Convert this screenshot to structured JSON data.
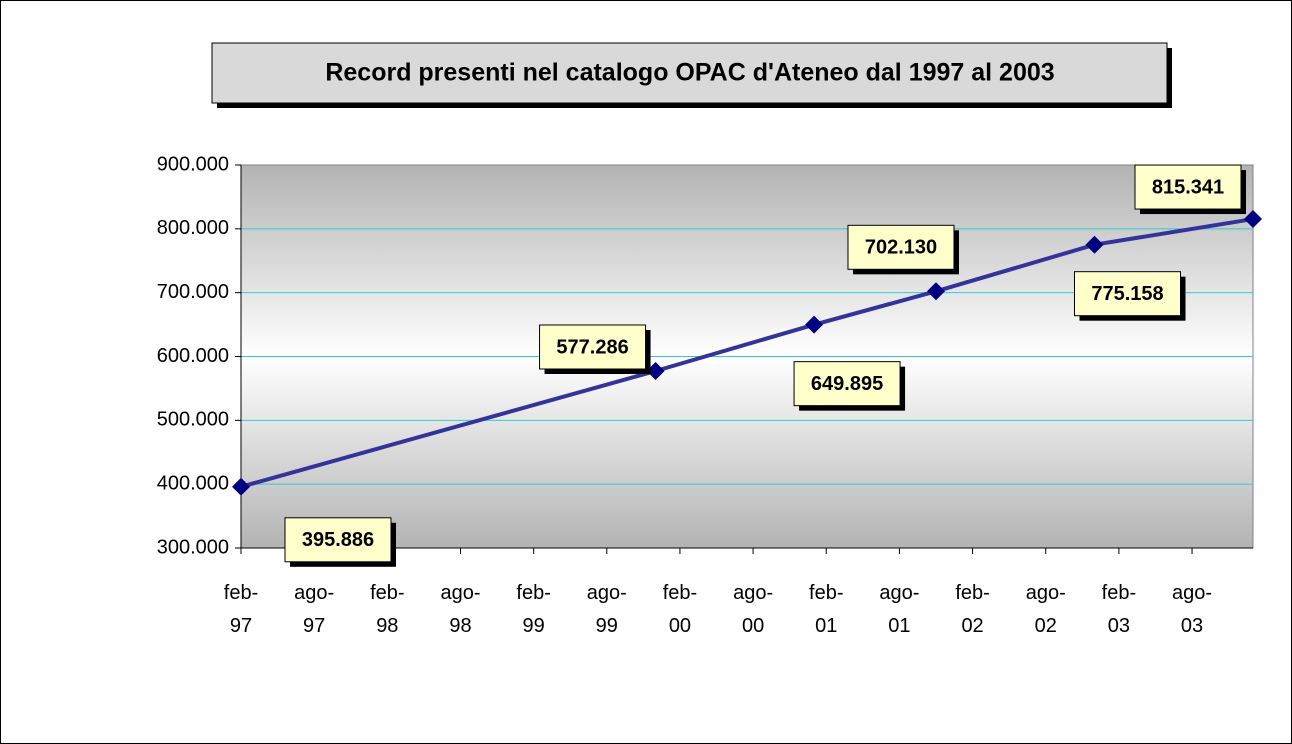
{
  "chart_data": {
    "type": "line",
    "title": "Record presenti nel catalogo OPAC d'Ateneo dal 1997 al 2003",
    "x": [
      "1997-02",
      "1999-12",
      "2001-01",
      "2001-11",
      "2002-12",
      "2004-01"
    ],
    "series": [
      {
        "name": null,
        "color": "#333399",
        "values": [
          395886,
          577286,
          649895,
          702130,
          775158,
          815341
        ],
        "value_labels": [
          "395.886",
          "577.286",
          "649.895",
          "702.130",
          "775.158",
          "815.341"
        ]
      }
    ],
    "xlim": [
      "1997-02",
      "2004-01"
    ],
    "xticks": [
      {
        "value": "1997-02",
        "label": "feb-97"
      },
      {
        "value": "1997-08",
        "label": "ago-97"
      },
      {
        "value": "1998-02",
        "label": "feb-98"
      },
      {
        "value": "1998-08",
        "label": "ago-98"
      },
      {
        "value": "1999-02",
        "label": "feb-99"
      },
      {
        "value": "1999-08",
        "label": "ago-99"
      },
      {
        "value": "2000-02",
        "label": "feb-00"
      },
      {
        "value": "2000-08",
        "label": "ago-00"
      },
      {
        "value": "2001-02",
        "label": "feb-01"
      },
      {
        "value": "2001-08",
        "label": "ago-01"
      },
      {
        "value": "2002-02",
        "label": "feb-02"
      },
      {
        "value": "2002-08",
        "label": "ago-02"
      },
      {
        "value": "2003-02",
        "label": "feb-03"
      },
      {
        "value": "2003-08",
        "label": "ago-03"
      }
    ],
    "ylim": [
      300000,
      900000
    ],
    "yticks": [
      {
        "value": 300000,
        "label": "300.000"
      },
      {
        "value": 400000,
        "label": "400.000"
      },
      {
        "value": 500000,
        "label": "500.000"
      },
      {
        "value": 600000,
        "label": "600.000"
      },
      {
        "value": 700000,
        "label": "700.000"
      },
      {
        "value": 800000,
        "label": "800.000"
      },
      {
        "value": 900000,
        "label": "900.000"
      }
    ],
    "grid": true
  }
}
